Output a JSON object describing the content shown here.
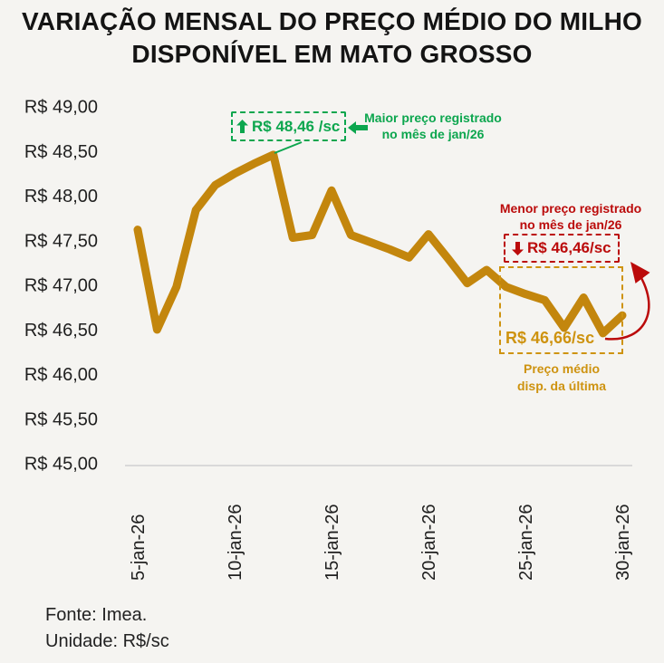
{
  "title": {
    "line1": "VARIAÇÃO MENSAL DO PREÇO MÉDIO DO MILHO",
    "line2": "DISPONÍVEL EM MATO GROSSO"
  },
  "chart_data": {
    "type": "line",
    "series_name": "Preço médio do milho disponível em Mato Grosso",
    "unit": "R$/sc",
    "x": [
      "5-jan-26",
      "6-jan-26",
      "7-jan-26",
      "8-jan-26",
      "9-jan-26",
      "10-jan-26",
      "11-jan-26",
      "12-jan-26",
      "13-jan-26",
      "14-jan-26",
      "15-jan-26",
      "16-jan-26",
      "17-jan-26",
      "18-jan-26",
      "19-jan-26",
      "20-jan-26",
      "21-jan-26",
      "22-jan-26",
      "23-jan-26",
      "24-jan-26",
      "25-jan-26",
      "26-jan-26",
      "27-jan-26",
      "28-jan-26",
      "29-jan-26",
      "30-jan-26"
    ],
    "values": [
      47.62,
      46.5,
      46.98,
      47.84,
      48.12,
      48.25,
      48.36,
      48.46,
      47.53,
      47.56,
      48.06,
      47.56,
      47.48,
      47.4,
      47.31,
      47.57,
      47.3,
      47.02,
      47.17,
      46.98,
      46.9,
      46.83,
      46.52,
      46.86,
      46.46,
      46.66
    ],
    "x_tick_labels": [
      "5-jan-26",
      "10-jan-26",
      "15-jan-26",
      "20-jan-26",
      "25-jan-26",
      "30-jan-26"
    ],
    "x_tick_indices": [
      0,
      5,
      10,
      15,
      20,
      25
    ],
    "y_ticks": [
      49.0,
      48.5,
      48.0,
      47.5,
      47.0,
      46.5,
      46.0,
      45.5,
      45.0
    ],
    "y_tick_labels": [
      "R$ 49,00",
      "R$ 48,50",
      "R$ 48,00",
      "R$ 47,50",
      "R$ 47,00",
      "R$ 46,50",
      "R$ 46,00",
      "R$ 45,50",
      "R$ 45,00"
    ],
    "ylim": [
      45.0,
      49.0
    ],
    "grid": false,
    "line_color": "#C3860D",
    "axis_color": "#D9D9D9"
  },
  "annotations": {
    "max": {
      "value_label": "R$ 48,46 /sc",
      "note_line1": "Maior preço registrado",
      "note_line2": "no mês de jan/26",
      "color": "#0CA64E"
    },
    "min": {
      "value_label": "R$ 46,46/sc",
      "note_line1": "Menor preço registrado",
      "note_line2": "no mês de jan/26",
      "color": "#BB0B0B"
    },
    "last": {
      "value_label": "R$ 46,66/sc",
      "caption_line1": "Preço médio",
      "caption_line2": "disp. da última",
      "color": "#CE9310"
    }
  },
  "footer": {
    "source": "Fonte: Imea.",
    "unit": "Unidade: R$/sc"
  }
}
